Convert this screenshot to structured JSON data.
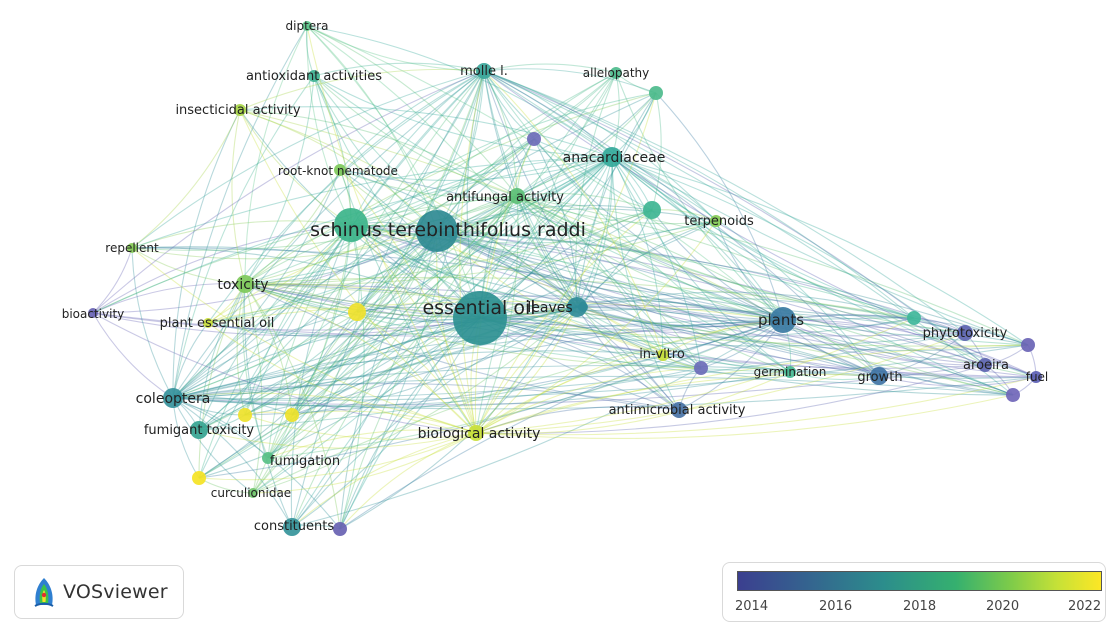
{
  "app": {
    "name": "VOSviewer",
    "logo_icon": "vosviewer-logo-icon"
  },
  "legend": {
    "ticks": [
      "2014",
      "2016",
      "2018",
      "2020",
      "2022"
    ]
  },
  "nodes": [
    {
      "id": "schinus",
      "label": "schinus terebinthifolius raddi",
      "color": "#2f8a93"
    },
    {
      "id": "essential",
      "label": "essential oil",
      "color": "#2c9091"
    },
    {
      "id": "schinus2",
      "label": "",
      "color": "#3cb48a"
    },
    {
      "id": "diptera",
      "label": "diptera",
      "color": "#5bc58a"
    },
    {
      "id": "antiox",
      "label": "antioxidant activities",
      "color": "#3fb293"
    },
    {
      "id": "molle",
      "label": "molle l.",
      "color": "#3aa69a"
    },
    {
      "id": "allelopathy",
      "label": "allelopathy",
      "color": "#4dbb8c"
    },
    {
      "id": "insecticidal",
      "label": "insecticidal activity",
      "color": "#a7d547"
    },
    {
      "id": "rootknot",
      "label": "root-knot nematode",
      "color": "#7ec95a"
    },
    {
      "id": "anacardiaceae",
      "label": "anacardiaceae",
      "color": "#34a99a"
    },
    {
      "id": "antifungal",
      "label": "antifungal activity",
      "color": "#5cbf76"
    },
    {
      "id": "terpenoids",
      "label": "terpenoids",
      "color": "#86cc55"
    },
    {
      "id": "repellent",
      "label": "repellent",
      "color": "#86cc55"
    },
    {
      "id": "toxicity",
      "label": "toxicity",
      "color": "#7ec95a"
    },
    {
      "id": "bioactivity",
      "label": "bioactivity",
      "color": "#6863b4"
    },
    {
      "id": "plantoil",
      "label": "plant essential oil",
      "color": "#c9df3a"
    },
    {
      "id": "leaves",
      "label": "leaves",
      "color": "#2f8b98"
    },
    {
      "id": "plants",
      "label": "plants",
      "color": "#3a7aa2"
    },
    {
      "id": "phyto",
      "label": "phytotoxicity",
      "color": "#5c64b0"
    },
    {
      "id": "aroeira",
      "label": "aroeira",
      "color": "#5c64b0"
    },
    {
      "id": "fuel",
      "label": "fuel",
      "color": "#5b5eb4"
    },
    {
      "id": "invitro",
      "label": "in-vitro",
      "color": "#c9df3a"
    },
    {
      "id": "germination",
      "label": "germination",
      "color": "#47b994"
    },
    {
      "id": "growth",
      "label": "growth",
      "color": "#3f73a4"
    },
    {
      "id": "antimicrobial",
      "label": "antimicrobial activity",
      "color": "#4872a5"
    },
    {
      "id": "coleoptera",
      "label": "coleoptera",
      "color": "#35919b"
    },
    {
      "id": "fumigant",
      "label": "fumigant toxicity",
      "color": "#36a491"
    },
    {
      "id": "biological",
      "label": "biological activity",
      "color": "#c9df3a"
    },
    {
      "id": "fumigation",
      "label": "fumigation",
      "color": "#58c085"
    },
    {
      "id": "curculionidae",
      "label": "curculionidae",
      "color": "#70c56b"
    },
    {
      "id": "constituents",
      "label": "constituents",
      "color": "#35949a"
    }
  ]
}
